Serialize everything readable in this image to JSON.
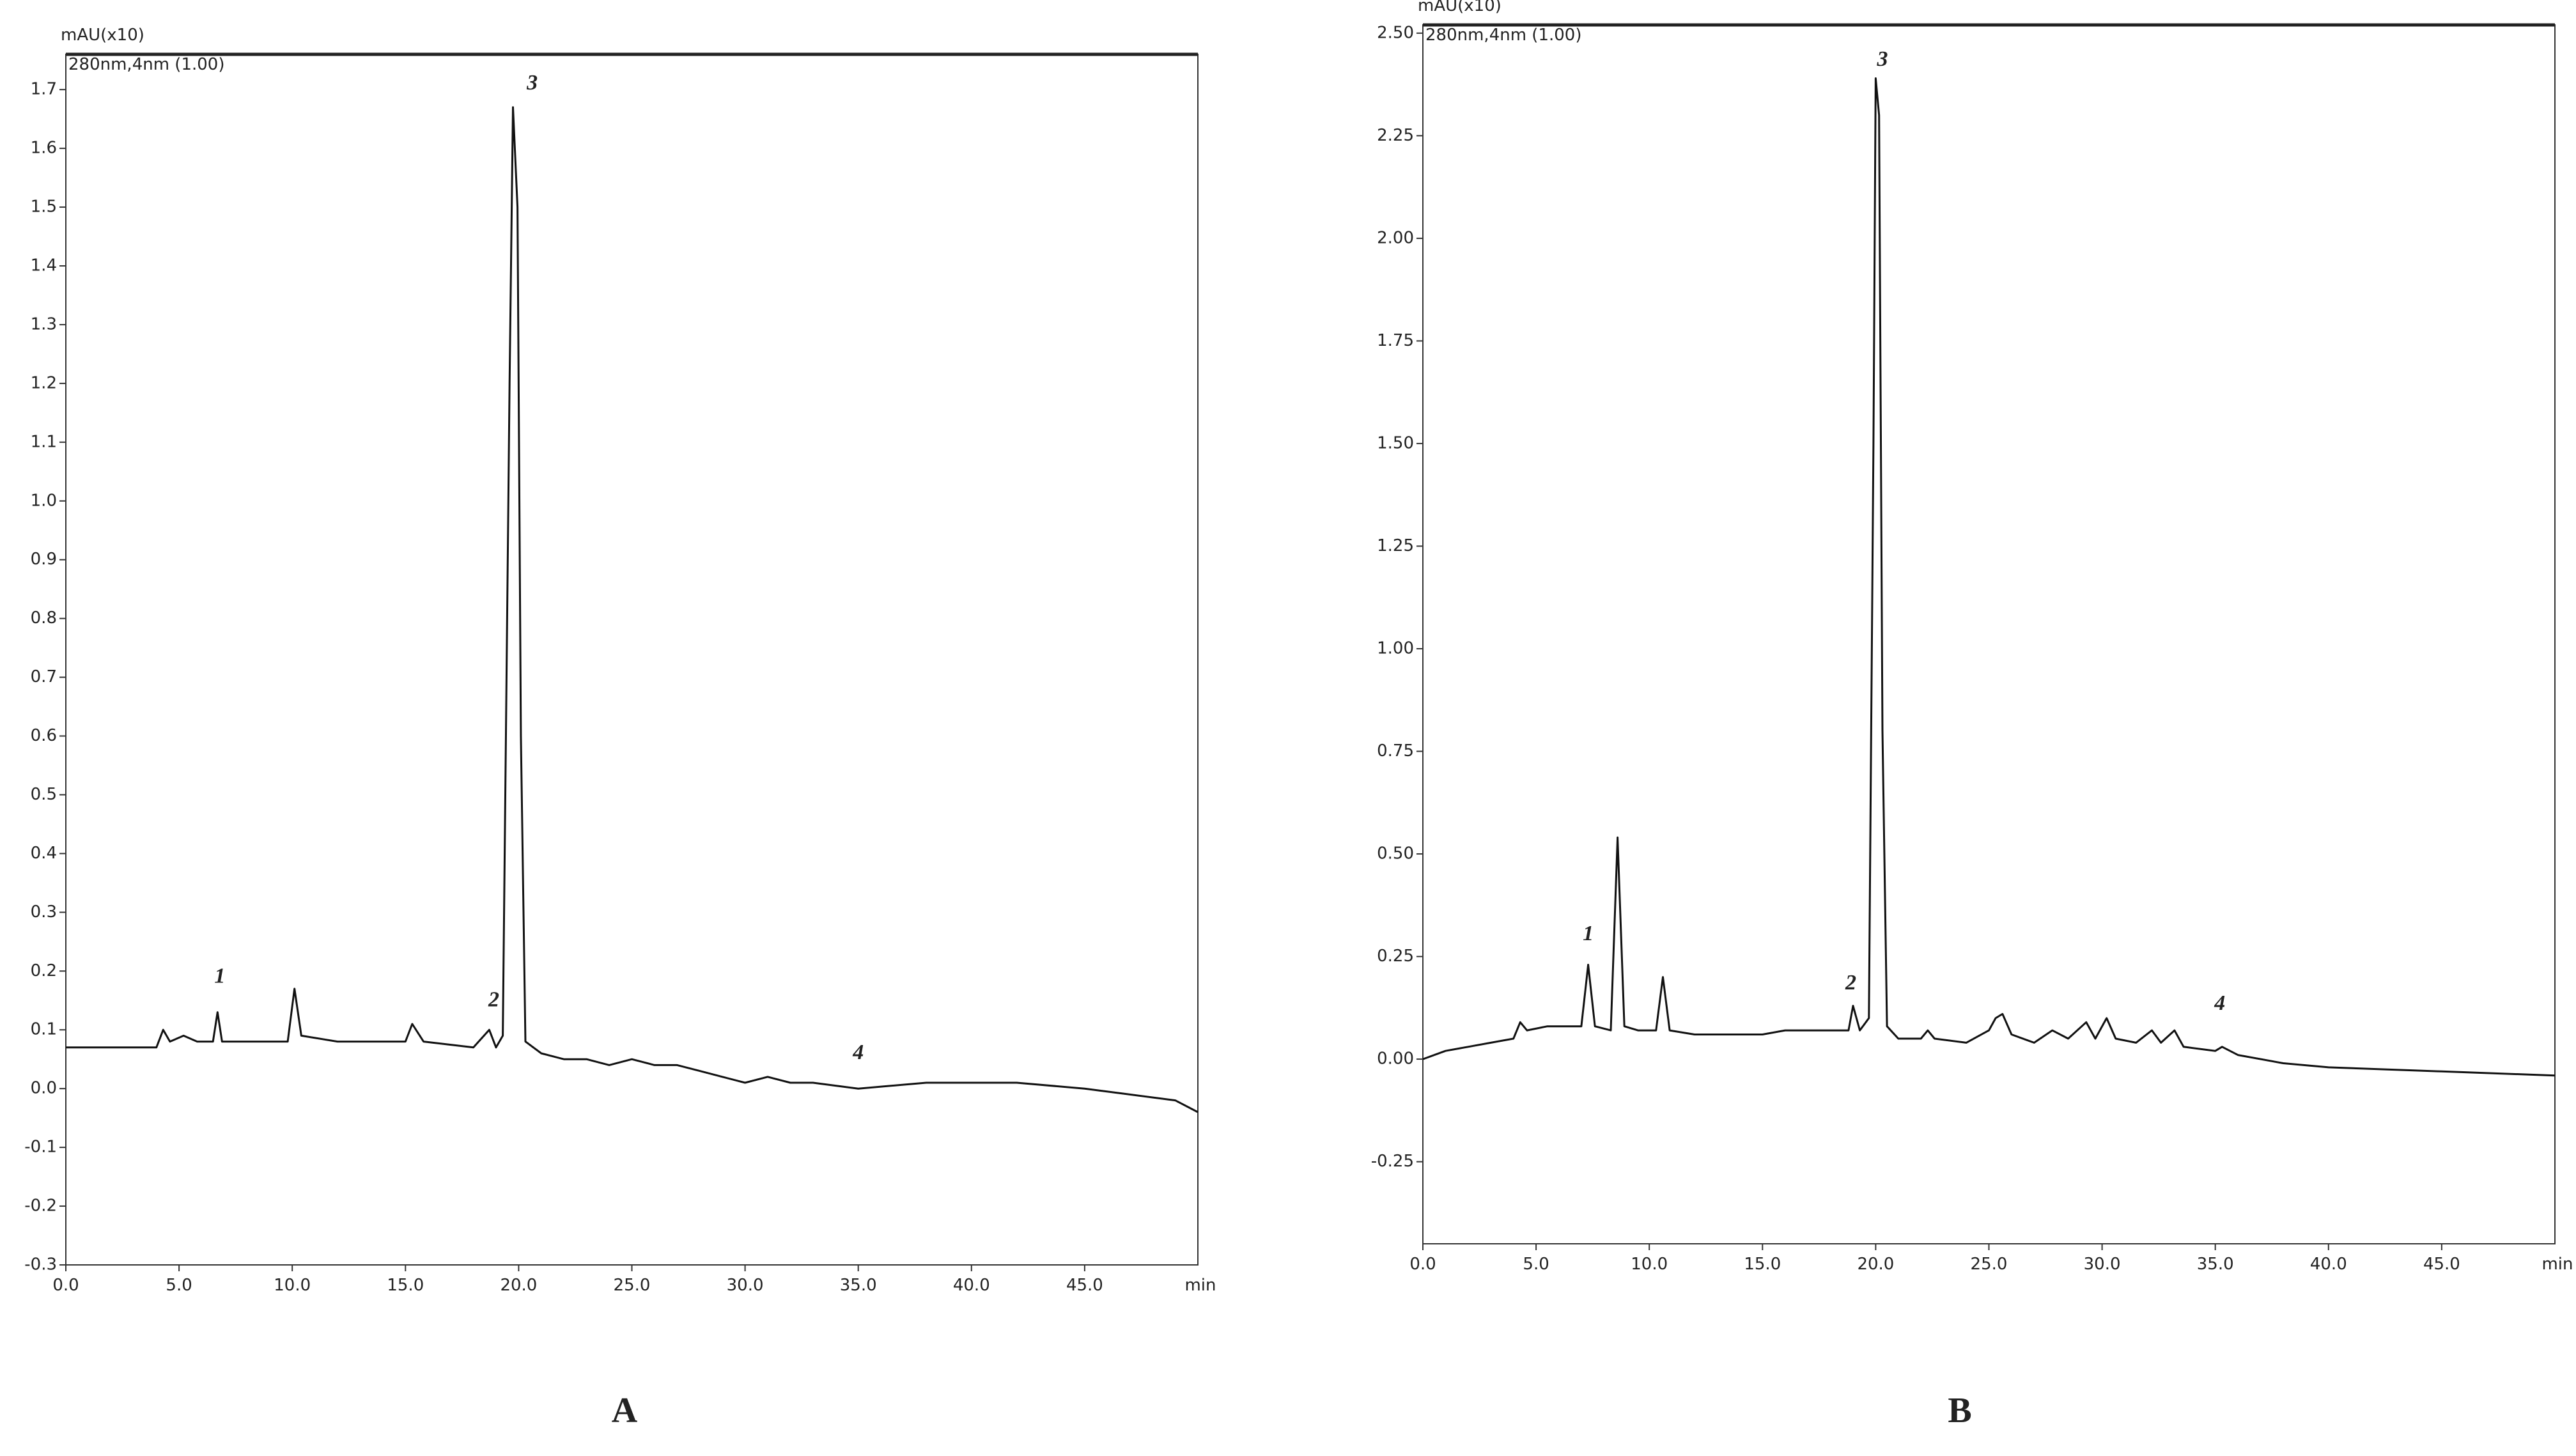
{
  "chart_data": [
    {
      "type": "line",
      "panel_label": "A",
      "y_label": "mAU(x10)",
      "subtitle": "280nm,4nm (1.00)",
      "x_label": "min",
      "color": "#111111",
      "xlim": [
        0,
        50
      ],
      "ylim": [
        -0.3,
        1.76
      ],
      "xticks": [
        {
          "value": 0,
          "label": "0.0"
        },
        {
          "value": 5,
          "label": "5.0"
        },
        {
          "value": 10,
          "label": "10.0"
        },
        {
          "value": 15,
          "label": "15.0"
        },
        {
          "value": 20,
          "label": "20.0"
        },
        {
          "value": 25,
          "label": "25.0"
        },
        {
          "value": 30,
          "label": "30.0"
        },
        {
          "value": 35,
          "label": "35.0"
        },
        {
          "value": 40,
          "label": "40.0"
        },
        {
          "value": 45,
          "label": "45.0"
        }
      ],
      "yticks": [
        -0.3,
        -0.2,
        -0.1,
        {
          "value": 0,
          "label": "0.0"
        },
        0.1,
        0.2,
        0.3,
        0.4,
        0.5,
        0.6,
        0.7,
        0.8,
        0.9,
        {
          "value": 1,
          "label": "1.0"
        },
        1.1,
        1.2,
        1.3,
        1.4,
        1.5,
        1.6,
        1.7
      ],
      "x": [
        0,
        2,
        4,
        4.3,
        4.6,
        5.2,
        5.8,
        6.5,
        6.7,
        6.9,
        8,
        9.8,
        10.1,
        10.4,
        12,
        15,
        15.3,
        15.8,
        18,
        18.7,
        19.0,
        19.3,
        19.6,
        19.75,
        19.95,
        20.1,
        20.3,
        21,
        22,
        23,
        24,
        25,
        26,
        27,
        28,
        29,
        30,
        31,
        32,
        33,
        35,
        38,
        40,
        42,
        45,
        47,
        49,
        50
      ],
      "values": [
        0.07,
        0.07,
        0.07,
        0.1,
        0.08,
        0.09,
        0.08,
        0.08,
        0.13,
        0.08,
        0.08,
        0.08,
        0.17,
        0.09,
        0.08,
        0.08,
        0.11,
        0.08,
        0.07,
        0.1,
        0.07,
        0.09,
        1.2,
        1.67,
        1.5,
        0.6,
        0.08,
        0.06,
        0.05,
        0.05,
        0.04,
        0.05,
        0.04,
        0.04,
        0.03,
        0.02,
        0.01,
        0.02,
        0.01,
        0.01,
        0.0,
        0.01,
        0.01,
        0.01,
        0.0,
        -0.01,
        -0.02,
        -0.04
      ],
      "annotations": [
        {
          "text": "1",
          "x": 6.8,
          "y": 0.18
        },
        {
          "text": "2",
          "x": 18.9,
          "y": 0.14
        },
        {
          "text": "3",
          "x": 20.6,
          "y": 1.7
        },
        {
          "text": "4",
          "x": 35,
          "y": 0.05
        }
      ]
    },
    {
      "type": "line",
      "panel_label": "B",
      "y_label": "mAU(x10)",
      "subtitle": "280nm,4nm (1.00)",
      "x_label": "min",
      "color": "#111111",
      "xlim": [
        0,
        50
      ],
      "ylim": [
        -0.45,
        2.52
      ],
      "xticks": [
        {
          "value": 0,
          "label": "0.0"
        },
        {
          "value": 5,
          "label": "5.0"
        },
        {
          "value": 10,
          "label": "10.0"
        },
        {
          "value": 15,
          "label": "15.0"
        },
        {
          "value": 20,
          "label": "20.0"
        },
        {
          "value": 25,
          "label": "25.0"
        },
        {
          "value": 30,
          "label": "30.0"
        },
        {
          "value": 35,
          "label": "35.0"
        },
        {
          "value": 40,
          "label": "40.0"
        },
        {
          "value": 45,
          "label": "45.0"
        }
      ],
      "yticks": [
        -0.25,
        {
          "value": 0,
          "label": "0.00"
        },
        0.25,
        {
          "value": 0.5,
          "label": "0.50"
        },
        0.75,
        {
          "value": 1,
          "label": "1.00"
        },
        1.25,
        {
          "value": 1.5,
          "label": "1.50"
        },
        1.75,
        {
          "value": 2,
          "label": "2.00"
        },
        2.25,
        {
          "value": 2.5,
          "label": "2.50"
        }
      ],
      "x": [
        0,
        1,
        2,
        3,
        4,
        4.3,
        4.6,
        5.5,
        6.5,
        7.0,
        7.3,
        7.6,
        8.3,
        8.6,
        8.9,
        9.5,
        10.3,
        10.6,
        10.9,
        12,
        15,
        16,
        18,
        18.8,
        19.0,
        19.3,
        19.7,
        19.9,
        20.0,
        20.15,
        20.3,
        20.5,
        21,
        22,
        22.3,
        22.6,
        24,
        25,
        25.3,
        25.6,
        26,
        27,
        27.8,
        28.5,
        29.3,
        29.7,
        30.2,
        30.6,
        31.5,
        32.2,
        32.6,
        33.2,
        33.6,
        35,
        35.3,
        36,
        38,
        40,
        45,
        50
      ],
      "values": [
        0.0,
        0.02,
        0.03,
        0.04,
        0.05,
        0.09,
        0.07,
        0.08,
        0.08,
        0.08,
        0.23,
        0.08,
        0.07,
        0.54,
        0.08,
        0.07,
        0.07,
        0.2,
        0.07,
        0.06,
        0.06,
        0.07,
        0.07,
        0.07,
        0.13,
        0.07,
        0.1,
        1.5,
        2.39,
        2.3,
        0.8,
        0.08,
        0.05,
        0.05,
        0.07,
        0.05,
        0.04,
        0.07,
        0.1,
        0.11,
        0.06,
        0.04,
        0.07,
        0.05,
        0.09,
        0.05,
        0.1,
        0.05,
        0.04,
        0.07,
        0.04,
        0.07,
        0.03,
        0.02,
        0.03,
        0.01,
        -0.01,
        -0.02,
        -0.03,
        -0.04
      ],
      "annotations": [
        {
          "text": "1",
          "x": 7.3,
          "y": 0.29
        },
        {
          "text": "2",
          "x": 18.9,
          "y": 0.17
        },
        {
          "text": "3",
          "x": 20.3,
          "y": 2.42
        },
        {
          "text": "4",
          "x": 35.2,
          "y": 0.12
        }
      ]
    }
  ]
}
